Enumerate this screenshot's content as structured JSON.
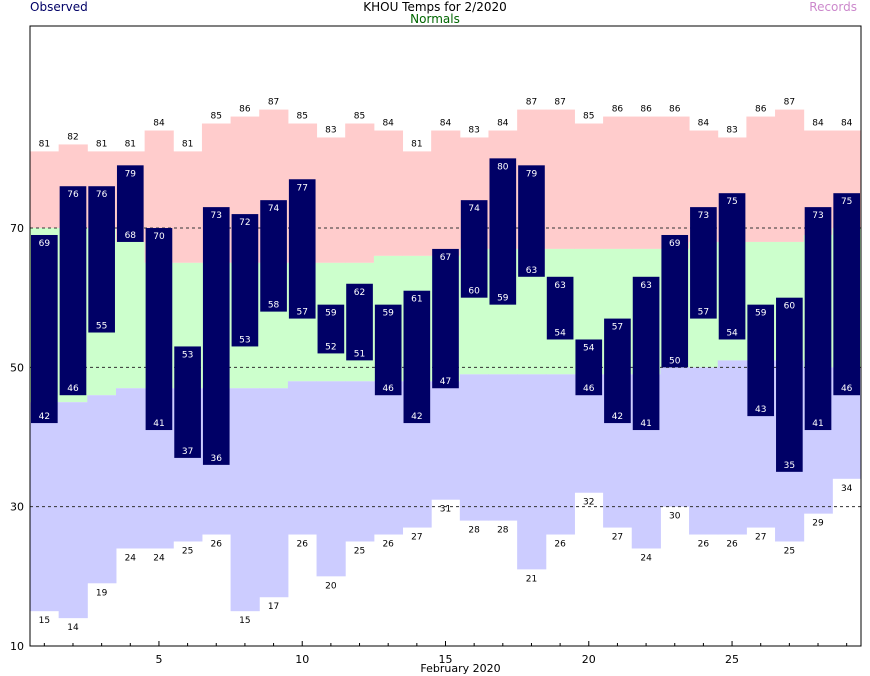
{
  "title": "KHOU Temps for 2/2020",
  "legend": {
    "observed": "Observed",
    "normals": "Normals",
    "records": "Records"
  },
  "colors": {
    "observed": "#000066",
    "normal_band": "#ccffcc",
    "record_high_band": "#ffcccc",
    "record_low_band": "#ccccff",
    "normals_text": "#006600",
    "records_text": "#cc88cc",
    "grid": "#333333"
  },
  "chart_data": {
    "type": "bar",
    "xlabel": "February 2020",
    "ylabel": "",
    "ylim": [
      10,
      99
    ],
    "xlim": [
      0.5,
      29.5
    ],
    "yticks": [
      10,
      30,
      50,
      70
    ],
    "xticks": [
      5,
      10,
      15,
      20,
      25
    ],
    "gridlines_y": [
      30,
      50,
      70
    ],
    "days": [
      1,
      2,
      3,
      4,
      5,
      6,
      7,
      8,
      9,
      10,
      11,
      12,
      13,
      14,
      15,
      16,
      17,
      18,
      19,
      20,
      21,
      22,
      23,
      24,
      25,
      26,
      27,
      28,
      29
    ],
    "observed_high": [
      69,
      76,
      76,
      79,
      70,
      53,
      73,
      72,
      74,
      77,
      59,
      62,
      59,
      61,
      67,
      74,
      80,
      79,
      63,
      54,
      57,
      63,
      69,
      73,
      75,
      59,
      60,
      73,
      75
    ],
    "observed_low": [
      42,
      46,
      55,
      68,
      41,
      37,
      36,
      53,
      58,
      57,
      52,
      51,
      46,
      42,
      47,
      60,
      59,
      63,
      54,
      46,
      42,
      41,
      50,
      57,
      54,
      43,
      35,
      41,
      46
    ],
    "record_high": [
      81,
      82,
      81,
      81,
      84,
      81,
      85,
      86,
      87,
      85,
      83,
      85,
      84,
      81,
      84,
      83,
      84,
      87,
      87,
      85,
      86,
      86,
      86,
      84,
      83,
      86,
      87,
      84,
      84
    ],
    "record_low": [
      15,
      14,
      19,
      24,
      24,
      25,
      26,
      15,
      17,
      26,
      20,
      25,
      26,
      27,
      31,
      28,
      28,
      21,
      26,
      32,
      27,
      24,
      30,
      26,
      26,
      27,
      25,
      29,
      34
    ],
    "normal_high": [
      70,
      70,
      70,
      68,
      65,
      65,
      65,
      65,
      65,
      65,
      65,
      65,
      66,
      66,
      66,
      67,
      67,
      67,
      67,
      67,
      67,
      67,
      67,
      68,
      68,
      68,
      68,
      69,
      70
    ],
    "normal_low": [
      45,
      45,
      46,
      47,
      47,
      47,
      47,
      47,
      47,
      48,
      48,
      48,
      48,
      48,
      48,
      49,
      49,
      49,
      49,
      49,
      49,
      49,
      50,
      50,
      51,
      51,
      51,
      50,
      50
    ]
  }
}
